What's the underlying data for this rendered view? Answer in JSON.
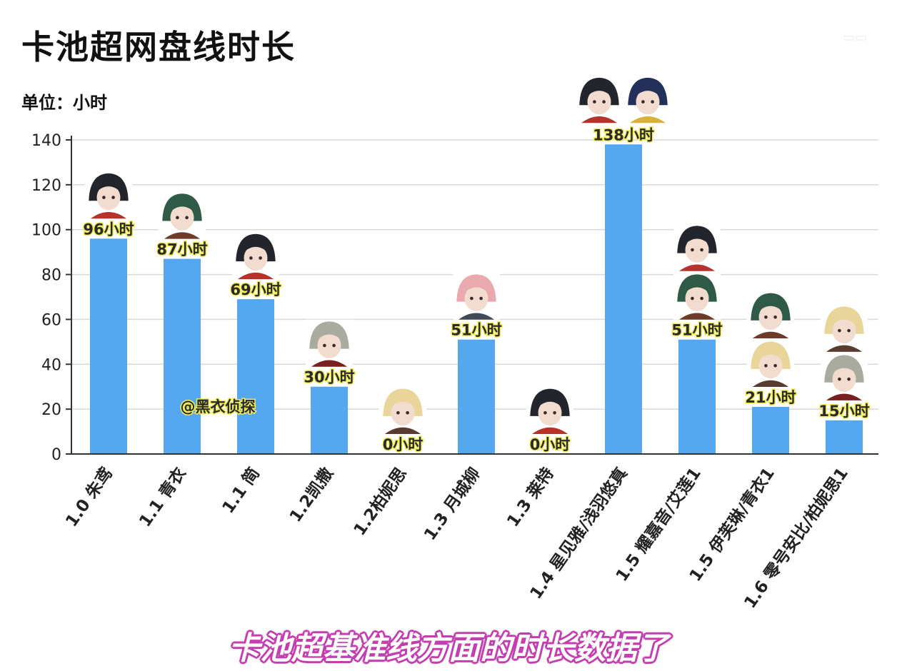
{
  "header": {
    "title": "卡池超网盘线时长",
    "unit": "单位：小时",
    "subtitle": "卡池超基准线方面的时长数据了"
  },
  "colors": {
    "bar": "#55a8f0",
    "grid": "#d9d9d9",
    "axis": "#333333",
    "avatar_dark": "#2b2d34",
    "avatar_green": "#2f5a47",
    "avatar_skin": "#f1dccf",
    "avatar_blonde": "#ecd9a0"
  },
  "chart_data": {
    "type": "bar",
    "title": "卡池超网盘线时长",
    "ylabel": "单位：小时",
    "ylim": [
      0,
      140
    ],
    "yticks": [
      0,
      20,
      40,
      60,
      80,
      100,
      120,
      140
    ],
    "grid": true,
    "categories": [
      "1.0 朱鸢",
      "1.1 青衣",
      "1.1 简",
      "1.2凯撒",
      "1.2柏妮思",
      "1.3 月城柳",
      "1.3 莱特",
      "1.4 星见雅/浅羽悠真",
      "1.5 耀嘉音/艾莲1",
      "1.5 伊芙琳/青衣1",
      "1.6 零号安比/柏妮思1"
    ],
    "values": [
      96,
      87,
      69,
      30,
      0,
      51,
      0,
      138,
      51,
      21,
      15
    ],
    "value_labels": [
      "96小时",
      "87小时",
      "69小时",
      "30小时",
      "0小时",
      "51小时",
      "0小时",
      "138小时",
      "51小时",
      "21小时",
      "15小时"
    ],
    "avatars_per_bar": [
      1,
      1,
      1,
      1,
      1,
      1,
      1,
      2,
      2,
      2,
      2
    ],
    "avatar_styles": [
      [
        "dark"
      ],
      [
        "green"
      ],
      [
        "dark"
      ],
      [
        "silver"
      ],
      [
        "blonde"
      ],
      [
        "pink"
      ],
      [
        "dark"
      ],
      [
        "dark",
        "navy"
      ],
      [
        "dark",
        "green"
      ],
      [
        "green",
        "blonde"
      ],
      [
        "blonde",
        "silver"
      ]
    ],
    "annotation": "@黑衣侦探"
  }
}
